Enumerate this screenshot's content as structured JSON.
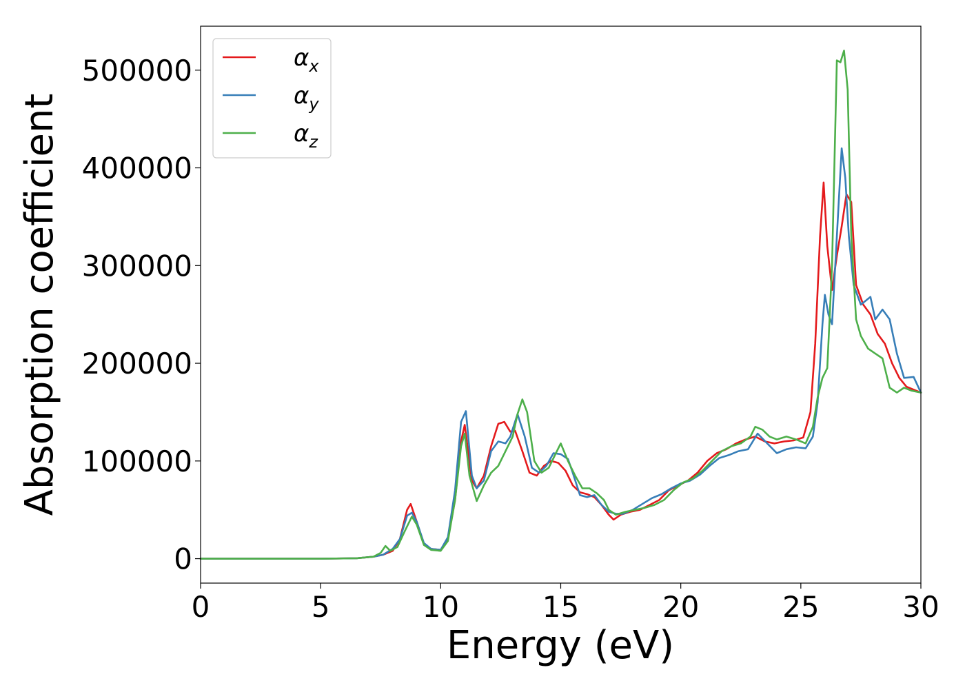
{
  "chart_data": {
    "type": "line",
    "title": "",
    "xlabel": "Energy (eV)",
    "ylabel": "Absorption coefficient",
    "xlim": [
      0,
      30
    ],
    "ylim": [
      -25000,
      545000
    ],
    "xticks": [
      0,
      5,
      10,
      15,
      20,
      25,
      30
    ],
    "xtick_labels": [
      "0",
      "5",
      "10",
      "15",
      "20",
      "25",
      "30"
    ],
    "yticks": [
      0,
      100000,
      200000,
      300000,
      400000,
      500000
    ],
    "ytick_labels": [
      "0",
      "100000",
      "200000",
      "300000",
      "400000",
      "500000"
    ],
    "grid": false,
    "legend_position": "top-left",
    "series": [
      {
        "name": "αx",
        "label_main": "α",
        "label_sub": "x",
        "color": "#e41a1c",
        "x": [
          0,
          5,
          6.5,
          7.2,
          7.6,
          8.0,
          8.3,
          8.6,
          8.75,
          9.0,
          9.3,
          9.6,
          10.0,
          10.3,
          10.6,
          10.85,
          11.0,
          11.3,
          11.5,
          11.8,
          12.1,
          12.4,
          12.65,
          12.9,
          13.1,
          13.4,
          13.7,
          14.0,
          14.3,
          14.6,
          14.9,
          15.2,
          15.5,
          15.8,
          16.1,
          16.4,
          16.7,
          17.0,
          17.2,
          17.5,
          17.9,
          18.3,
          18.7,
          19.1,
          19.5,
          19.9,
          20.3,
          20.7,
          21.1,
          21.5,
          21.9,
          22.3,
          22.7,
          23.1,
          23.5,
          23.9,
          24.3,
          24.7,
          25.1,
          25.4,
          25.6,
          25.8,
          25.95,
          26.1,
          26.3,
          26.5,
          26.7,
          26.9,
          27.1,
          27.3,
          27.6,
          27.9,
          28.2,
          28.5,
          28.8,
          29.1,
          29.4,
          29.7,
          30.0
        ],
        "values": [
          0,
          0,
          500,
          2000,
          4000,
          8000,
          20000,
          50000,
          56000,
          38000,
          15000,
          10000,
          9000,
          20000,
          60000,
          120000,
          137000,
          80000,
          72000,
          85000,
          115000,
          138000,
          140000,
          130000,
          131000,
          110000,
          88000,
          85000,
          95000,
          100000,
          98000,
          90000,
          75000,
          68000,
          66000,
          63000,
          55000,
          45000,
          40000,
          45000,
          48000,
          50000,
          55000,
          60000,
          70000,
          75000,
          80000,
          88000,
          100000,
          108000,
          112000,
          118000,
          122000,
          125000,
          120000,
          118000,
          120000,
          121000,
          124000,
          150000,
          220000,
          330000,
          385000,
          320000,
          275000,
          310000,
          340000,
          373000,
          365000,
          280000,
          260000,
          250000,
          230000,
          220000,
          200000,
          185000,
          176000,
          173000,
          170000
        ]
      },
      {
        "name": "αy",
        "label_main": "α",
        "label_sub": "y",
        "color": "#377eb8",
        "x": [
          0,
          5,
          6.5,
          7.2,
          7.6,
          8.0,
          8.3,
          8.6,
          8.8,
          9.0,
          9.3,
          9.6,
          10.0,
          10.3,
          10.6,
          10.85,
          11.05,
          11.3,
          11.5,
          11.8,
          12.1,
          12.4,
          12.7,
          12.9,
          13.2,
          13.5,
          13.8,
          14.1,
          14.4,
          14.7,
          15.0,
          15.3,
          15.5,
          15.8,
          16.1,
          16.4,
          16.7,
          17.0,
          17.3,
          17.6,
          18.0,
          18.4,
          18.8,
          19.2,
          19.6,
          20.0,
          20.4,
          20.8,
          21.2,
          21.6,
          22.0,
          22.4,
          22.8,
          23.2,
          23.6,
          24.0,
          24.4,
          24.8,
          25.2,
          25.5,
          25.7,
          25.9,
          26.0,
          26.15,
          26.3,
          26.5,
          26.7,
          26.85,
          27.0,
          27.2,
          27.5,
          27.9,
          28.1,
          28.4,
          28.7,
          29.0,
          29.3,
          29.7,
          30.0
        ],
        "values": [
          0,
          0,
          500,
          2000,
          4000,
          10000,
          20000,
          44000,
          47000,
          38000,
          16000,
          10000,
          9000,
          22000,
          70000,
          140000,
          151000,
          85000,
          72000,
          80000,
          110000,
          120000,
          118000,
          125000,
          148000,
          125000,
          93000,
          88000,
          95000,
          108000,
          107000,
          102000,
          88000,
          65000,
          63000,
          65000,
          55000,
          48000,
          46000,
          46000,
          50000,
          56000,
          62000,
          66000,
          72000,
          77000,
          80000,
          86000,
          95000,
          103000,
          106000,
          110000,
          112000,
          128000,
          118000,
          108000,
          112000,
          114000,
          113000,
          125000,
          160000,
          240000,
          270000,
          250000,
          240000,
          330000,
          420000,
          390000,
          330000,
          280000,
          260000,
          268000,
          245000,
          255000,
          245000,
          210000,
          185000,
          186000,
          170000
        ]
      },
      {
        "name": "αz",
        "label_main": "α",
        "label_sub": "z",
        "color": "#4daf4a",
        "x": [
          0,
          5,
          6.5,
          7.2,
          7.5,
          7.7,
          7.9,
          8.2,
          8.5,
          8.8,
          9.0,
          9.3,
          9.6,
          10.0,
          10.3,
          10.6,
          10.85,
          11.0,
          11.2,
          11.5,
          11.8,
          12.1,
          12.4,
          12.7,
          13.0,
          13.2,
          13.4,
          13.6,
          13.9,
          14.2,
          14.5,
          14.8,
          15.0,
          15.3,
          15.6,
          15.9,
          16.2,
          16.5,
          16.8,
          17.0,
          17.3,
          17.7,
          18.1,
          18.5,
          18.9,
          19.3,
          19.7,
          20.1,
          20.5,
          20.9,
          21.3,
          21.7,
          22.1,
          22.5,
          22.9,
          23.1,
          23.4,
          23.7,
          24.0,
          24.4,
          24.8,
          25.2,
          25.5,
          25.7,
          25.9,
          26.1,
          26.3,
          26.5,
          26.65,
          26.8,
          26.95,
          27.1,
          27.3,
          27.5,
          27.8,
          28.1,
          28.4,
          28.7,
          29.0,
          29.3,
          29.6,
          30.0
        ],
        "values": [
          0,
          0,
          500,
          2000,
          6000,
          13000,
          8000,
          12000,
          28000,
          43000,
          35000,
          14000,
          9000,
          8000,
          18000,
          60000,
          115000,
          128000,
          85000,
          59000,
          75000,
          88000,
          95000,
          110000,
          125000,
          148000,
          163000,
          150000,
          100000,
          88000,
          93000,
          108000,
          118000,
          100000,
          85000,
          72000,
          72000,
          67000,
          60000,
          50000,
          45000,
          48000,
          50000,
          52000,
          55000,
          60000,
          70000,
          78000,
          82000,
          90000,
          100000,
          110000,
          115000,
          118000,
          125000,
          135000,
          132000,
          125000,
          122000,
          125000,
          122000,
          118000,
          135000,
          165000,
          185000,
          195000,
          300000,
          510000,
          508000,
          520000,
          480000,
          330000,
          245000,
          228000,
          215000,
          210000,
          205000,
          175000,
          170000,
          175000,
          172000,
          170000
        ]
      }
    ]
  }
}
